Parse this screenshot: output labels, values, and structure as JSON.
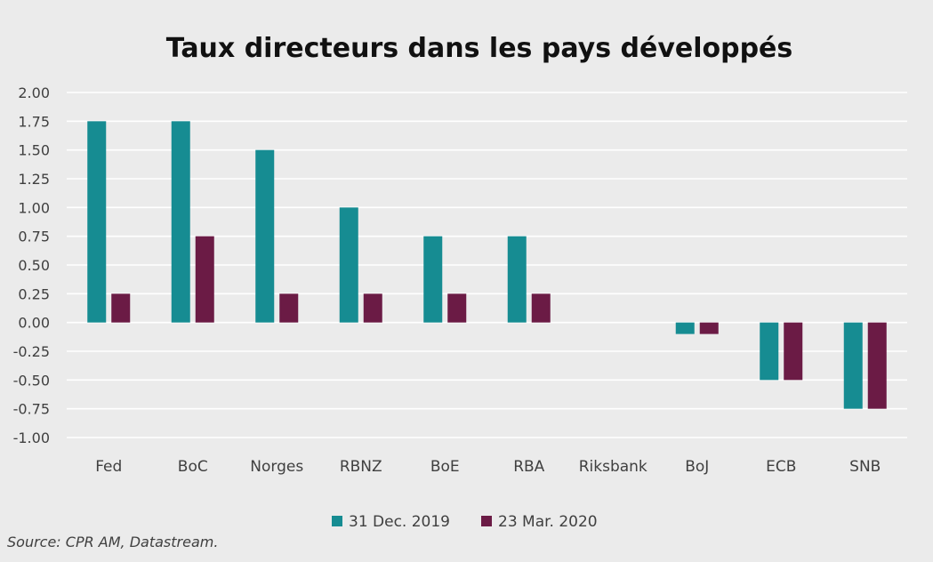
{
  "colors": {
    "series1": "#168c92",
    "series2": "#6b1b45",
    "grid": "#ffffff",
    "text": "#404040",
    "title": "#111111",
    "background": "#ebebeb"
  },
  "source": "Source:  CPR AM, Datastream.",
  "chart_data": {
    "type": "bar",
    "title": "Taux directeurs dans les pays développés",
    "xlabel": "",
    "ylabel": "",
    "categories": [
      "Fed",
      "BoC",
      "Norges",
      "RBNZ",
      "BoE",
      "RBA",
      "Riksbank",
      "BoJ",
      "ECB",
      "SNB"
    ],
    "series": [
      {
        "name": "31 Dec. 2019",
        "values": [
          1.75,
          1.75,
          1.5,
          1.0,
          0.75,
          0.75,
          0.0,
          -0.1,
          -0.5,
          -0.75
        ]
      },
      {
        "name": "23 Mar. 2020",
        "values": [
          0.25,
          0.75,
          0.25,
          0.25,
          0.25,
          0.25,
          0.0,
          -0.1,
          -0.5,
          -0.75
        ]
      }
    ],
    "ylim": [
      -1.0,
      2.0
    ],
    "yticks": [
      "2.00",
      "1.75",
      "1.50",
      "1.25",
      "1.00",
      "0.75",
      "0.50",
      "0.25",
      "0.00",
      "-0.25",
      "-0.50",
      "-0.75",
      "-1.00"
    ],
    "grid": true,
    "legend": "bottom-center"
  }
}
